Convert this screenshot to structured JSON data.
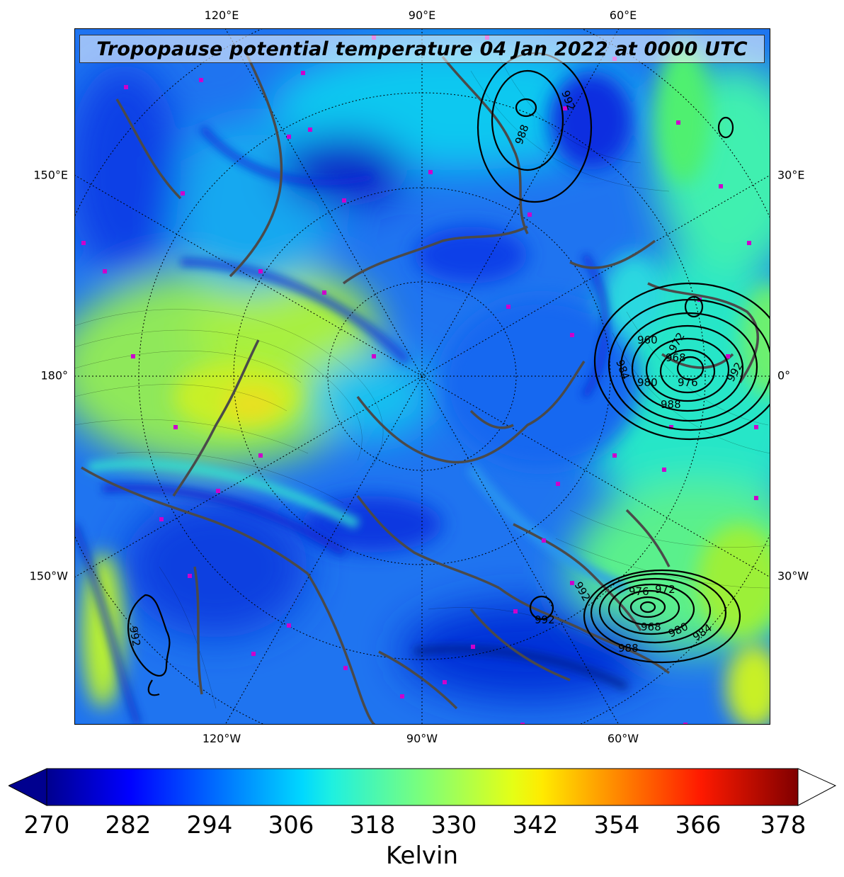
{
  "title": "Tropopause potential temperature 04 Jan 2022 at 0000 UTC",
  "longitude_labels": {
    "top": [
      "120°E",
      "90°E",
      "60°E"
    ],
    "bottom": [
      "120°W",
      "90°W",
      "60°W"
    ],
    "left": [
      "150°E",
      "180°",
      "150°W"
    ],
    "right": [
      "30°E",
      "0°",
      "30°W"
    ]
  },
  "colorbar": {
    "label": "Kelvin",
    "ticks": [
      "270",
      "282",
      "294",
      "306",
      "318",
      "330",
      "342",
      "354",
      "366",
      "378"
    ],
    "min": 270,
    "max": 381,
    "extend": "both",
    "colormap": "jet"
  },
  "pressure_contours": [
    {
      "name": "low-north-atlantic",
      "labels": [
        "960",
        "968",
        "972",
        "976",
        "980",
        "984",
        "988",
        "992"
      ]
    },
    {
      "name": "low-europe",
      "labels": [
        "992",
        "988"
      ]
    },
    {
      "name": "low-greenland-south",
      "labels": [
        "968",
        "972",
        "976",
        "980",
        "984",
        "988",
        "992"
      ]
    },
    {
      "name": "low-hudson",
      "labels": [
        "992"
      ]
    },
    {
      "name": "low-gulf-alaska",
      "labels": [
        "992"
      ]
    }
  ],
  "colors": {
    "coastline": "#4a4a4a",
    "station_marker": "#cc00cc",
    "contour": "#000000"
  }
}
